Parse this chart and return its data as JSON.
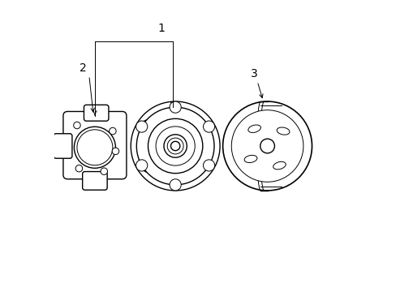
{
  "bg_color": "#ffffff",
  "line_color": "#000000",
  "lw": 1.0,
  "tlw": 0.7,
  "label1": "1",
  "label2": "2",
  "label3": "3",
  "p1": [
    0.14,
    0.5
  ],
  "p2": [
    0.42,
    0.5
  ],
  "p3": [
    0.74,
    0.5
  ]
}
